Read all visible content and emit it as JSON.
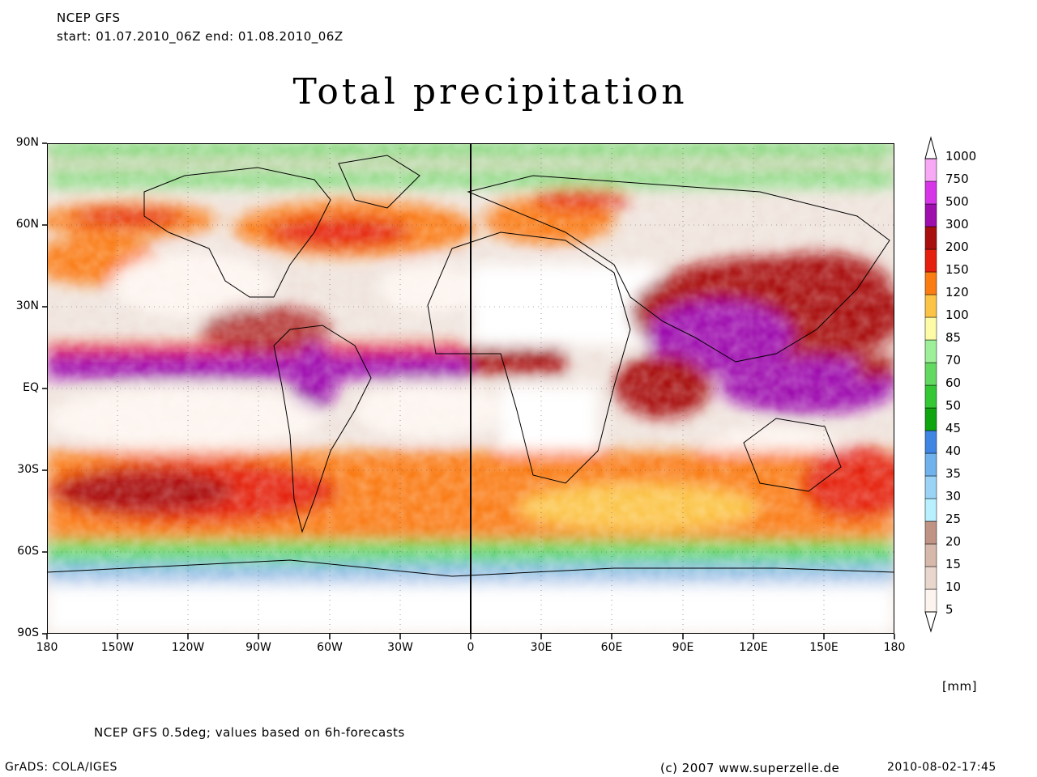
{
  "header": {
    "line1": "NCEP GFS",
    "line2": "start: 01.07.2010_06Z    end: 01.08.2010_06Z"
  },
  "title": "Total precipitation",
  "map": {
    "lat_labels": [
      "90N",
      "60N",
      "30N",
      "EQ",
      "30S",
      "60S",
      "90S"
    ],
    "lon_labels": [
      "180",
      "150W",
      "120W",
      "90W",
      "60W",
      "30W",
      "0",
      "30E",
      "60E",
      "90E",
      "120E",
      "150E",
      "180"
    ]
  },
  "legend": {
    "levels": [
      "5",
      "10",
      "15",
      "20",
      "25",
      "30",
      "35",
      "40",
      "45",
      "50",
      "60",
      "70",
      "85",
      "100",
      "120",
      "150",
      "200",
      "300",
      "500",
      "750",
      "1000"
    ],
    "colors": [
      "#fdf4ef",
      "#e9d7cd",
      "#d7b9ab",
      "#c09485",
      "#b8f0ff",
      "#9bd3f7",
      "#6fb2ec",
      "#3f86e3",
      "#0fa50f",
      "#34c834",
      "#63d962",
      "#9df099",
      "#fefba7",
      "#fbc446",
      "#fa7c12",
      "#e5200e",
      "#a8100f",
      "#9e0fae",
      "#d736e8",
      "#f7a9f5"
    ],
    "unit": "[mm]"
  },
  "footer": {
    "source": "NCEP GFS 0.5deg; values based on 6h-forecasts",
    "software": "GrADS: COLA/IGES",
    "copyright": "(c) 2007 www.superzelle.de",
    "timestamp": "2010-08-02-17:45"
  }
}
